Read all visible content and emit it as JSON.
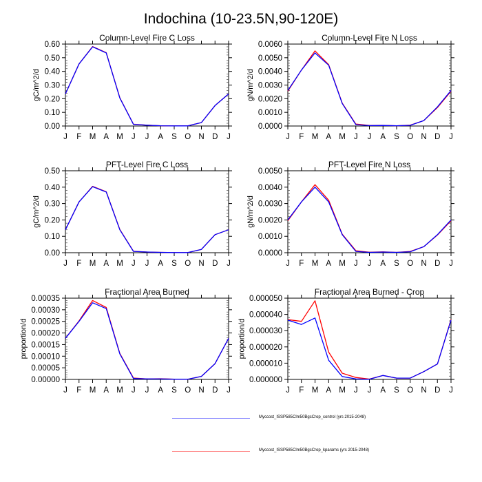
{
  "page_title": "Indochina (10-23.5N,90-120E)",
  "legend": [
    {
      "name": "Myccost_ISSP585Clm50BgcCrop_control (yrs 2015-2048)",
      "color": "#0000ff"
    },
    {
      "name": "Myccost_ISSP585Clm50BgcCrop_kparams (yrs 2015-2048)",
      "color": "#ff0000"
    }
  ],
  "chart_data": [
    {
      "type": "line",
      "title": "Column-Level Fire C Loss",
      "xlabel": "",
      "ylabel": "gC/m^2/d",
      "categories": [
        "J",
        "F",
        "M",
        "A",
        "M",
        "J",
        "J",
        "A",
        "S",
        "O",
        "N",
        "D",
        "J"
      ],
      "ylim": [
        0,
        0.6
      ],
      "yticks": [
        0,
        0.1,
        0.2,
        0.3,
        0.4,
        0.5,
        0.6
      ],
      "ytick_labels": [
        "0.00",
        "0.10",
        "0.20",
        "0.30",
        "0.40",
        "0.50",
        "0.60"
      ],
      "series": [
        {
          "name": "control",
          "color": "#0000ff",
          "values": [
            0.235,
            0.455,
            0.58,
            0.535,
            0.205,
            0.012,
            0.006,
            0.002,
            0.001,
            0.001,
            0.025,
            0.15,
            0.235
          ]
        },
        {
          "name": "kparams",
          "color": "#ff0000",
          "values": [
            0.235,
            0.455,
            0.582,
            0.537,
            0.207,
            0.013,
            0.006,
            0.002,
            0.001,
            0.001,
            0.025,
            0.15,
            0.235
          ]
        }
      ]
    },
    {
      "type": "line",
      "title": "Column-Level Fire N Loss",
      "xlabel": "",
      "ylabel": "gN/m^2/d",
      "categories": [
        "J",
        "F",
        "M",
        "A",
        "M",
        "J",
        "J",
        "A",
        "S",
        "O",
        "N",
        "D",
        "J"
      ],
      "ylim": [
        0,
        0.006
      ],
      "yticks": [
        0,
        0.001,
        0.002,
        0.003,
        0.004,
        0.005,
        0.006
      ],
      "ytick_labels": [
        "0.0000",
        "0.0010",
        "0.0020",
        "0.0030",
        "0.0040",
        "0.0050",
        "0.0060"
      ],
      "series": [
        {
          "name": "control",
          "color": "#0000ff",
          "values": [
            0.0026,
            0.0041,
            0.00535,
            0.00445,
            0.00165,
            0.0001,
            3e-05,
            4e-05,
            2e-05,
            5e-05,
            0.0004,
            0.0014,
            0.0026
          ]
        },
        {
          "name": "kparams",
          "color": "#ff0000",
          "values": [
            0.00255,
            0.0041,
            0.0055,
            0.0045,
            0.00168,
            0.00014,
            4e-05,
            5e-05,
            2e-05,
            6e-05,
            0.0004,
            0.00135,
            0.00255
          ]
        }
      ]
    },
    {
      "type": "line",
      "title": "PFT-Level Fire C Loss",
      "xlabel": "",
      "ylabel": "gC/m^2/d",
      "categories": [
        "J",
        "F",
        "M",
        "A",
        "M",
        "J",
        "J",
        "A",
        "S",
        "O",
        "N",
        "D",
        "J"
      ],
      "ylim": [
        0,
        0.5
      ],
      "yticks": [
        0,
        0.1,
        0.2,
        0.3,
        0.4,
        0.5
      ],
      "ytick_labels": [
        "0.00",
        "0.10",
        "0.20",
        "0.30",
        "0.40",
        "0.50"
      ],
      "series": [
        {
          "name": "control",
          "color": "#0000ff",
          "values": [
            0.14,
            0.31,
            0.403,
            0.37,
            0.14,
            0.008,
            0.004,
            0.002,
            0.001,
            0.001,
            0.02,
            0.11,
            0.14
          ]
        },
        {
          "name": "kparams",
          "color": "#ff0000",
          "values": [
            0.14,
            0.31,
            0.405,
            0.372,
            0.142,
            0.009,
            0.004,
            0.002,
            0.001,
            0.001,
            0.02,
            0.11,
            0.14
          ]
        }
      ]
    },
    {
      "type": "line",
      "title": "PFT-Level Fire N Loss",
      "xlabel": "",
      "ylabel": "gN/m^2/d",
      "categories": [
        "J",
        "F",
        "M",
        "A",
        "M",
        "J",
        "J",
        "A",
        "S",
        "O",
        "N",
        "D",
        "J"
      ],
      "ylim": [
        0,
        0.005
      ],
      "yticks": [
        0,
        0.001,
        0.002,
        0.003,
        0.004,
        0.005
      ],
      "ytick_labels": [
        "0.0000",
        "0.0010",
        "0.0020",
        "0.0030",
        "0.0040",
        "0.0050"
      ],
      "series": [
        {
          "name": "control",
          "color": "#0000ff",
          "values": [
            0.002,
            0.0031,
            0.004,
            0.0031,
            0.0011,
            8e-05,
            2e-05,
            4e-05,
            2e-05,
            6e-05,
            0.00037,
            0.0011,
            0.002
          ]
        },
        {
          "name": "kparams",
          "color": "#ff0000",
          "values": [
            0.00195,
            0.0031,
            0.00415,
            0.0032,
            0.00113,
            0.00012,
            3e-05,
            5e-05,
            2e-05,
            8e-05,
            0.00037,
            0.00108,
            0.00195
          ]
        }
      ]
    },
    {
      "type": "line",
      "title": "Fractional Area Burned",
      "xlabel": "",
      "ylabel": "proportion/d",
      "categories": [
        "J",
        "F",
        "M",
        "A",
        "M",
        "J",
        "J",
        "A",
        "S",
        "O",
        "N",
        "D",
        "J"
      ],
      "ylim": [
        0,
        0.00035
      ],
      "yticks": [
        0,
        5e-05,
        0.0001,
        0.00015,
        0.0002,
        0.00025,
        0.0003,
        0.00035
      ],
      "ytick_labels": [
        "0.00000",
        "0.00005",
        "0.00010",
        "0.00015",
        "0.00020",
        "0.00025",
        "0.00030",
        "0.00035"
      ],
      "series": [
        {
          "name": "control",
          "color": "#0000ff",
          "values": [
            0.000177,
            0.00025,
            0.00033,
            0.000305,
            0.00011,
            4e-06,
            2e-06,
            2e-06,
            1e-06,
            1e-06,
            1.3e-05,
            6.8e-05,
            0.000177
          ]
        },
        {
          "name": "kparams",
          "color": "#ff0000",
          "values": [
            0.000177,
            0.000252,
            0.00034,
            0.00031,
            0.000112,
            6e-06,
            2e-06,
            3e-06,
            1e-06,
            1e-06,
            1.3e-05,
            6.8e-05,
            0.000177
          ]
        }
      ]
    },
    {
      "type": "line",
      "title": "Fractional Area Burned - Crop",
      "xlabel": "",
      "ylabel": "proportion/d",
      "categories": [
        "J",
        "F",
        "M",
        "A",
        "M",
        "J",
        "J",
        "A",
        "S",
        "O",
        "N",
        "D",
        "J"
      ],
      "ylim": [
        0,
        5e-05
      ],
      "yticks": [
        0,
        1e-05,
        2e-05,
        3e-05,
        4e-05,
        5e-05
      ],
      "ytick_labels": [
        "0.000000",
        "0.000010",
        "0.000020",
        "0.000030",
        "0.000040",
        "0.000050"
      ],
      "series": [
        {
          "name": "control",
          "color": "#0000ff",
          "values": [
            3.65e-05,
            3.38e-05,
            3.78e-05,
            1.18e-05,
            1.8e-06,
            3e-07,
            1e-07,
            2.4e-06,
            8e-07,
            8e-07,
            4.8e-06,
            9.5e-06,
            3.65e-05
          ]
        },
        {
          "name": "kparams",
          "color": "#ff0000",
          "values": [
            3.68e-05,
            3.57e-05,
            4.84e-05,
            1.68e-05,
            3.8e-06,
            1.2e-06,
            2e-07,
            2.4e-06,
            8e-07,
            8e-07,
            4.8e-06,
            9.5e-06,
            3.68e-05
          ]
        }
      ]
    }
  ]
}
